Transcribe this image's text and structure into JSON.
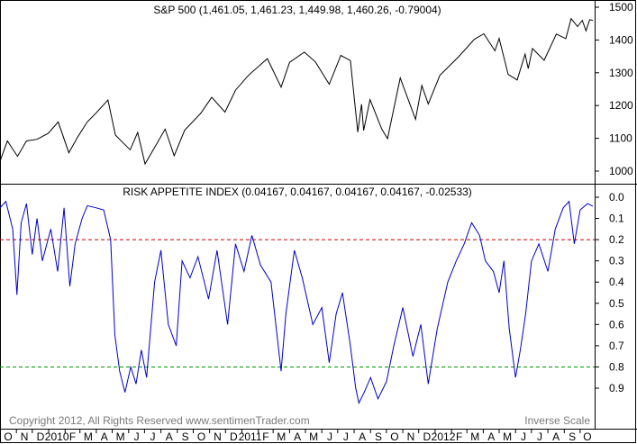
{
  "colors": {
    "price_line": "#000000",
    "index_line": "#0000cc",
    "upper_threshold": "#cc0000",
    "lower_threshold": "#009900",
    "footer_text": "#7a7a7a",
    "frame": "#000000"
  },
  "footer": {
    "copyright": "Copyright 2012, All Rights Reserved  www.sentimenTrader.com",
    "scale_note": "Inverse Scale"
  },
  "chart_data": [
    {
      "type": "line",
      "title": "S&P 500 (1,461.05, 1,461.23, 1,449.98, 1,460.26, -0.79004)",
      "ylim": [
        975,
        1530
      ],
      "y_ticks": [
        "1500",
        "1400",
        "1300",
        "1200",
        "1100",
        "1000"
      ],
      "x_range": [
        "2009-10-01",
        "2012-10-25"
      ],
      "series": [
        {
          "values": [
            [
              "2009-10-01",
              1030
            ],
            [
              "2009-10-15",
              1092
            ],
            [
              "2009-11-03",
              1045
            ],
            [
              "2009-11-20",
              1092
            ],
            [
              "2009-12-10",
              1097
            ],
            [
              "2009-12-31",
              1115
            ],
            [
              "2010-01-19",
              1150
            ],
            [
              "2010-02-08",
              1056
            ],
            [
              "2010-02-25",
              1105
            ],
            [
              "2010-03-15",
              1150
            ],
            [
              "2010-04-01",
              1178
            ],
            [
              "2010-04-23",
              1217
            ],
            [
              "2010-05-07",
              1110
            ],
            [
              "2010-05-21",
              1087
            ],
            [
              "2010-06-04",
              1065
            ],
            [
              "2010-06-18",
              1118
            ],
            [
              "2010-07-02",
              1022
            ],
            [
              "2010-07-20",
              1072
            ],
            [
              "2010-08-09",
              1128
            ],
            [
              "2010-08-26",
              1047
            ],
            [
              "2010-09-15",
              1125
            ],
            [
              "2010-10-15",
              1176
            ],
            [
              "2010-11-05",
              1225
            ],
            [
              "2010-11-30",
              1180
            ],
            [
              "2010-12-20",
              1247
            ],
            [
              "2011-01-14",
              1293
            ],
            [
              "2011-02-18",
              1343
            ],
            [
              "2011-03-16",
              1256
            ],
            [
              "2011-04-01",
              1332
            ],
            [
              "2011-04-29",
              1363
            ],
            [
              "2011-05-20",
              1333
            ],
            [
              "2011-06-15",
              1265
            ],
            [
              "2011-07-07",
              1353
            ],
            [
              "2011-07-25",
              1337
            ],
            [
              "2011-08-08",
              1119
            ],
            [
              "2011-08-15",
              1204
            ],
            [
              "2011-08-19",
              1124
            ],
            [
              "2011-08-31",
              1218
            ],
            [
              "2011-09-22",
              1129
            ],
            [
              "2011-10-03",
              1099
            ],
            [
              "2011-10-27",
              1284
            ],
            [
              "2011-11-25",
              1158
            ],
            [
              "2011-12-07",
              1261
            ],
            [
              "2011-12-19",
              1205
            ],
            [
              "2012-01-10",
              1292
            ],
            [
              "2012-02-15",
              1350
            ],
            [
              "2012-03-15",
              1402
            ],
            [
              "2012-04-02",
              1419
            ],
            [
              "2012-04-23",
              1367
            ],
            [
              "2012-05-01",
              1405
            ],
            [
              "2012-05-18",
              1295
            ],
            [
              "2012-06-04",
              1278
            ],
            [
              "2012-06-19",
              1357
            ],
            [
              "2012-06-25",
              1313
            ],
            [
              "2012-07-03",
              1374
            ],
            [
              "2012-07-25",
              1338
            ],
            [
              "2012-08-17",
              1418
            ],
            [
              "2012-09-04",
              1404
            ],
            [
              "2012-09-14",
              1465
            ],
            [
              "2012-09-26",
              1441
            ],
            [
              "2012-10-05",
              1460
            ],
            [
              "2012-10-12",
              1428
            ],
            [
              "2012-10-19",
              1462
            ],
            [
              "2012-10-25",
              1460
            ]
          ]
        }
      ]
    },
    {
      "type": "line",
      "title": "RISK APPETITE INDEX (0.04167, 0.04167, 0.04167, 0.04167, -0.02533)",
      "inverse_scale": true,
      "ylim": [
        0.0,
        1.0
      ],
      "y_ticks": [
        "0.0",
        "0.1",
        "0.2",
        "0.3",
        "0.4",
        "0.5",
        "0.6",
        "0.7",
        "0.8",
        "0.9"
      ],
      "x_range": [
        "2009-10-01",
        "2012-10-25"
      ],
      "x_tick_labels": [
        "O",
        "N",
        "D",
        "2010",
        "F",
        "M",
        "A",
        "M",
        "J",
        "J",
        "A",
        "S",
        "O",
        "N",
        "D",
        "2011",
        "F",
        "M",
        "A",
        "M",
        "J",
        "J",
        "A",
        "S",
        "O",
        "N",
        "D",
        "2012",
        "F",
        "M",
        "A",
        "M",
        "J",
        "J",
        "A",
        "S",
        "O"
      ],
      "x_tick_dates": [
        "2009-10-01",
        "2009-11-01",
        "2009-12-01",
        "2010-01-01",
        "2010-02-01",
        "2010-03-01",
        "2010-04-01",
        "2010-05-01",
        "2010-06-01",
        "2010-07-01",
        "2010-08-01",
        "2010-09-01",
        "2010-10-01",
        "2010-11-01",
        "2010-12-01",
        "2011-01-01",
        "2011-02-01",
        "2011-03-01",
        "2011-04-01",
        "2011-05-01",
        "2011-06-01",
        "2011-07-01",
        "2011-08-01",
        "2011-09-01",
        "2011-10-01",
        "2011-11-01",
        "2011-12-01",
        "2012-01-01",
        "2012-02-01",
        "2012-03-01",
        "2012-04-01",
        "2012-05-01",
        "2012-06-01",
        "2012-07-01",
        "2012-08-01",
        "2012-09-01",
        "2012-10-01"
      ],
      "thresholds": [
        {
          "value": 0.2,
          "style": "dashed",
          "color": "#cc0000"
        },
        {
          "value": 0.8,
          "style": "dashed",
          "color": "#009900"
        }
      ],
      "series": [
        {
          "values": [
            [
              "2009-10-01",
              0.05
            ],
            [
              "2009-10-12",
              0.02
            ],
            [
              "2009-10-25",
              0.15
            ],
            [
              "2009-11-02",
              0.46
            ],
            [
              "2009-11-10",
              0.12
            ],
            [
              "2009-11-20",
              0.03
            ],
            [
              "2009-12-01",
              0.27
            ],
            [
              "2009-12-10",
              0.1
            ],
            [
              "2009-12-20",
              0.3
            ],
            [
              "2010-01-05",
              0.15
            ],
            [
              "2010-01-18",
              0.35
            ],
            [
              "2010-01-30",
              0.05
            ],
            [
              "2010-02-10",
              0.42
            ],
            [
              "2010-02-20",
              0.22
            ],
            [
              "2010-03-05",
              0.1
            ],
            [
              "2010-03-15",
              0.04
            ],
            [
              "2010-04-01",
              0.05
            ],
            [
              "2010-04-15",
              0.06
            ],
            [
              "2010-04-28",
              0.2
            ],
            [
              "2010-05-06",
              0.65
            ],
            [
              "2010-05-15",
              0.82
            ],
            [
              "2010-05-25",
              0.92
            ],
            [
              "2010-06-05",
              0.8
            ],
            [
              "2010-06-15",
              0.88
            ],
            [
              "2010-06-25",
              0.72
            ],
            [
              "2010-07-05",
              0.85
            ],
            [
              "2010-07-20",
              0.4
            ],
            [
              "2010-08-01",
              0.25
            ],
            [
              "2010-08-15",
              0.6
            ],
            [
              "2010-08-30",
              0.7
            ],
            [
              "2010-09-10",
              0.3
            ],
            [
              "2010-09-25",
              0.38
            ],
            [
              "2010-10-10",
              0.28
            ],
            [
              "2010-10-30",
              0.48
            ],
            [
              "2010-11-15",
              0.25
            ],
            [
              "2010-12-05",
              0.6
            ],
            [
              "2010-12-20",
              0.22
            ],
            [
              "2011-01-05",
              0.35
            ],
            [
              "2011-01-20",
              0.18
            ],
            [
              "2011-02-05",
              0.32
            ],
            [
              "2011-02-25",
              0.4
            ],
            [
              "2011-03-16",
              0.82
            ],
            [
              "2011-03-25",
              0.55
            ],
            [
              "2011-04-10",
              0.25
            ],
            [
              "2011-04-25",
              0.38
            ],
            [
              "2011-05-15",
              0.6
            ],
            [
              "2011-06-01",
              0.52
            ],
            [
              "2011-06-15",
              0.78
            ],
            [
              "2011-06-28",
              0.55
            ],
            [
              "2011-07-10",
              0.45
            ],
            [
              "2011-07-25",
              0.7
            ],
            [
              "2011-08-04",
              0.9
            ],
            [
              "2011-08-10",
              0.97
            ],
            [
              "2011-08-20",
              0.92
            ],
            [
              "2011-09-01",
              0.85
            ],
            [
              "2011-09-15",
              0.95
            ],
            [
              "2011-10-01",
              0.87
            ],
            [
              "2011-10-15",
              0.7
            ],
            [
              "2011-11-01",
              0.52
            ],
            [
              "2011-11-20",
              0.75
            ],
            [
              "2011-12-05",
              0.6
            ],
            [
              "2011-12-19",
              0.88
            ],
            [
              "2012-01-05",
              0.62
            ],
            [
              "2012-01-25",
              0.4
            ],
            [
              "2012-02-10",
              0.3
            ],
            [
              "2012-02-25",
              0.22
            ],
            [
              "2012-03-10",
              0.12
            ],
            [
              "2012-03-25",
              0.18
            ],
            [
              "2012-04-05",
              0.3
            ],
            [
              "2012-04-20",
              0.35
            ],
            [
              "2012-05-01",
              0.45
            ],
            [
              "2012-05-10",
              0.3
            ],
            [
              "2012-05-20",
              0.62
            ],
            [
              "2012-06-01",
              0.85
            ],
            [
              "2012-06-10",
              0.72
            ],
            [
              "2012-06-20",
              0.55
            ],
            [
              "2012-07-01",
              0.3
            ],
            [
              "2012-07-15",
              0.22
            ],
            [
              "2012-08-01",
              0.35
            ],
            [
              "2012-08-15",
              0.15
            ],
            [
              "2012-08-30",
              0.05
            ],
            [
              "2012-09-10",
              0.02
            ],
            [
              "2012-09-20",
              0.22
            ],
            [
              "2012-10-01",
              0.06
            ],
            [
              "2012-10-15",
              0.03
            ],
            [
              "2012-10-25",
              0.042
            ]
          ]
        }
      ]
    }
  ]
}
